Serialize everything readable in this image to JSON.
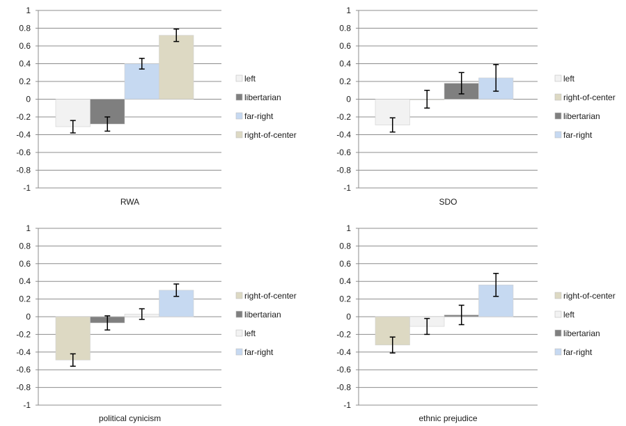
{
  "colors": {
    "left": "#f2f2f2",
    "libertarian": "#7f7f7f",
    "far-right": "#c6d9f1",
    "right-of-center": "#ddd9c3",
    "axis": "#8c8c8c",
    "error_bar": "#000000"
  },
  "chart_data": [
    {
      "type": "bar",
      "title": "",
      "xlabel": "RWA",
      "ylabel": "",
      "ylim": [
        -1,
        1
      ],
      "yticks": [
        "1",
        "0.8",
        "0.6",
        "0.4",
        "0.2",
        "0",
        "-0.2",
        "-0.4",
        "-0.6",
        "-0.8",
        "-1"
      ],
      "grid": true,
      "legend_position": "right",
      "series": [
        {
          "name": "left",
          "value": -0.31,
          "error": 0.07
        },
        {
          "name": "libertarian",
          "value": -0.28,
          "error": 0.08
        },
        {
          "name": "far-right",
          "value": 0.4,
          "error": 0.06
        },
        {
          "name": "right-of-center",
          "value": 0.72,
          "error": 0.07
        }
      ]
    },
    {
      "type": "bar",
      "title": "",
      "xlabel": "SDO",
      "ylabel": "",
      "ylim": [
        -1,
        1
      ],
      "yticks": [
        "1",
        "0.8",
        "0.6",
        "0.4",
        "0.2",
        "0",
        "-0.2",
        "-0.4",
        "-0.6",
        "-0.8",
        "-1"
      ],
      "grid": true,
      "legend_position": "right",
      "series": [
        {
          "name": "left",
          "value": -0.29,
          "error": 0.08
        },
        {
          "name": "right-of-center",
          "value": 0.0,
          "error": 0.1
        },
        {
          "name": "libertarian",
          "value": 0.18,
          "error": 0.12
        },
        {
          "name": "far-right",
          "value": 0.24,
          "error": 0.15
        }
      ]
    },
    {
      "type": "bar",
      "title": "",
      "xlabel": "political cynicism",
      "ylabel": "",
      "ylim": [
        -1,
        1
      ],
      "yticks": [
        "1",
        "0.8",
        "0.6",
        "0.4",
        "0.2",
        "0",
        "-0.2",
        "-0.4",
        "-0.6",
        "-0.8",
        "-1"
      ],
      "grid": true,
      "legend_position": "right",
      "series": [
        {
          "name": "right-of-center",
          "value": -0.49,
          "error": 0.07
        },
        {
          "name": "libertarian",
          "value": -0.07,
          "error": 0.08
        },
        {
          "name": "left",
          "value": 0.03,
          "error": 0.06
        },
        {
          "name": "far-right",
          "value": 0.3,
          "error": 0.07
        }
      ]
    },
    {
      "type": "bar",
      "title": "",
      "xlabel": "ethnic prejudice",
      "ylabel": "",
      "ylim": [
        -1,
        1
      ],
      "yticks": [
        "1",
        "0.8",
        "0.6",
        "0.4",
        "0.2",
        "0",
        "-0.2",
        "-0.4",
        "-0.6",
        "-0.8",
        "-1"
      ],
      "grid": true,
      "legend_position": "right",
      "series": [
        {
          "name": "right-of-center",
          "value": -0.32,
          "error": 0.09
        },
        {
          "name": "left",
          "value": -0.11,
          "error": 0.09
        },
        {
          "name": "libertarian",
          "value": 0.02,
          "error": 0.11
        },
        {
          "name": "far-right",
          "value": 0.36,
          "error": 0.13
        }
      ]
    }
  ]
}
